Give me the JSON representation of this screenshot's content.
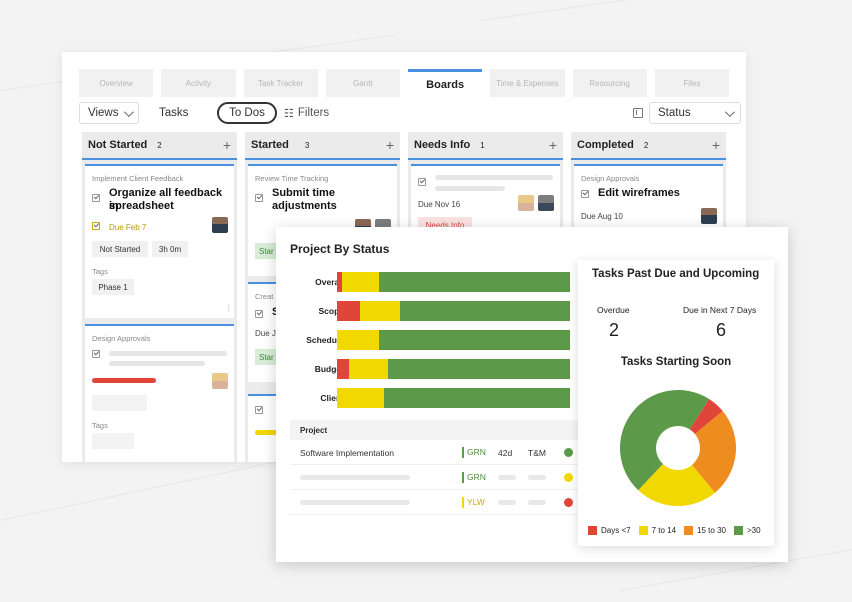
{
  "tabs": [
    "Overview",
    "Activity",
    "Task Tracker",
    "Gantt",
    "Boards",
    "Time & Expenses",
    "Resourcing",
    "Files"
  ],
  "active_tab": "Boards",
  "toolbar": {
    "views": "Views",
    "tasks": "Tasks",
    "todos": "To Dos",
    "filters": "Filters",
    "status": "Status"
  },
  "columns": [
    {
      "name": "Not Started",
      "count": "2"
    },
    {
      "name": "Started",
      "count": "3"
    },
    {
      "name": "Needs Info",
      "count": "1"
    },
    {
      "name": "Completed",
      "count": "2"
    }
  ],
  "cards": {
    "ns1": {
      "sub": "Implement Client Feedback",
      "title1": "Organize all feedback in",
      "title2": "spreadsheet",
      "due": "Due Feb 7",
      "status": "Not Started",
      "hours": "3h 0m",
      "tags": "Tags",
      "tag": "Phase 1"
    },
    "ns2": {
      "sub": "Design Approvals",
      "tags": "Tags"
    },
    "st1": {
      "sub": "Review Time Tracking",
      "title1": "Submit time",
      "title2": "adjustments",
      "pill": "Star"
    },
    "st2": {
      "sub": "Creat",
      "title1": "S",
      "due": "Due Ja",
      "pill": "Star"
    },
    "ni1": {
      "due": "Due Nov 16",
      "pill": "Needs Info"
    },
    "co1": {
      "sub": "Design Approvals",
      "title1": "Edit wireframes",
      "due": "Due Aug 10"
    }
  },
  "panel": {
    "title": "Project By Status",
    "table_header": "Project",
    "rows": [
      {
        "name": "Software Implementation",
        "rag": "GRN",
        "days": "42d",
        "type": "T&M",
        "dot": "#5c9a4a"
      },
      {
        "name": "",
        "rag": "GRN",
        "dot": "#f0d800"
      },
      {
        "name": "",
        "rag": "YLW",
        "dot": "#e0453a"
      }
    ]
  },
  "chart_data": [
    {
      "type": "bar",
      "title": "Project By Status",
      "stacked": true,
      "orientation": "horizontal",
      "categories": [
        "Overall",
        "Scope",
        "Schedule",
        "Budget",
        "Client"
      ],
      "series": [
        {
          "color": "#e0453a",
          "values": [
            2,
            10,
            0,
            5,
            0
          ]
        },
        {
          "color": "#f0d800",
          "values": [
            16,
            17,
            18,
            17,
            20
          ]
        },
        {
          "color": "#5c9a4a",
          "values": [
            82,
            73,
            82,
            78,
            80
          ]
        }
      ]
    },
    {
      "type": "pie",
      "title": "Tasks Starting Soon",
      "categories": [
        "Days <7",
        "7 to 14",
        "15 to 30",
        ">30"
      ],
      "values": [
        5,
        23,
        25,
        47
      ],
      "colors": [
        "#e0453a",
        "#f0d800",
        "#ee8c1f",
        "#5c9a4a"
      ]
    }
  ],
  "tasks_card": {
    "title": "Tasks Past Due and Upcoming",
    "overdue_label": "Overdue",
    "overdue_value": "2",
    "next7_label": "Due in Next 7 Days",
    "next7_value": "6",
    "soon_title": "Tasks Starting Soon"
  },
  "icons": {
    "views_chevron": "chevron-down-icon",
    "filters": "filter-icon",
    "status": "chevron-down-icon",
    "grid": "grid-icon"
  }
}
